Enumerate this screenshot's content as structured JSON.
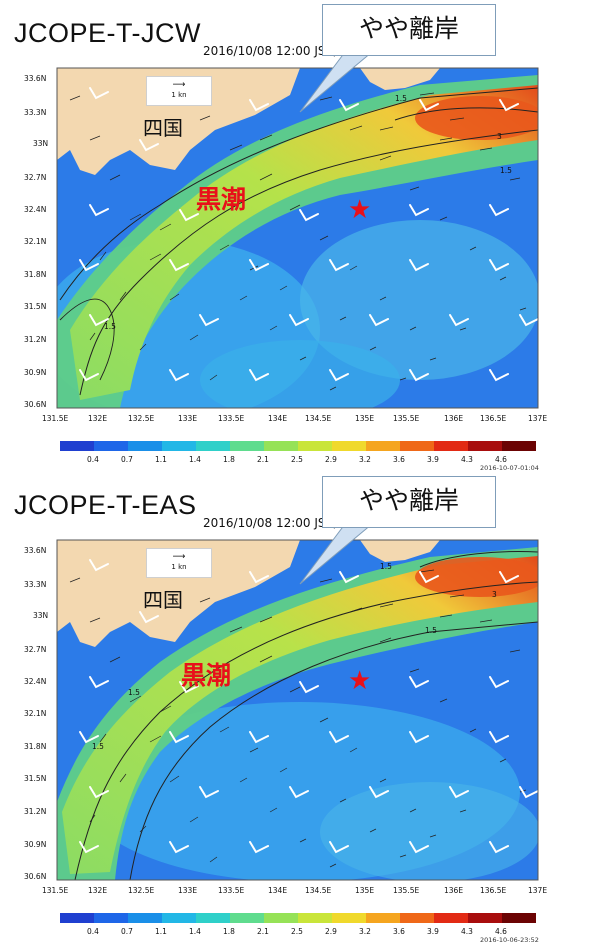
{
  "panels": [
    {
      "title": "JCOPE-T-JCW",
      "datetime": "2016/10/08 12:00 JST, z=0m",
      "callout": "やや離岸",
      "region_label": "四国",
      "current_label": "黒潮",
      "reference_arrow": "1 kn",
      "colorbar_stamp": "2016-10-07-01:04",
      "contour_label": "1.5",
      "contour_label_high": "3"
    },
    {
      "title": "JCOPE-T-EAS",
      "datetime": "2016/10/08 12:00 JST, z=0m",
      "callout": "やや離岸",
      "region_label": "四国",
      "current_label": "黒潮",
      "reference_arrow": "1 kn",
      "colorbar_stamp": "2016-10-06-23:52",
      "contour_label": "1.5",
      "contour_label_high": "3"
    }
  ],
  "lat_ticks": [
    "33.6N",
    "33.3N",
    "33N",
    "32.7N",
    "32.4N",
    "32.1N",
    "31.8N",
    "31.5N",
    "31.2N",
    "30.9N",
    "30.6N"
  ],
  "lon_ticks": [
    "131.5E",
    "132E",
    "132.5E",
    "133E",
    "133.5E",
    "134E",
    "134.5E",
    "135E",
    "135.5E",
    "136E",
    "136.5E",
    "137E"
  ],
  "colorbar_ticks": [
    "0.4",
    "0.7",
    "1.1",
    "1.4",
    "1.8",
    "2.1",
    "2.5",
    "2.9",
    "3.2",
    "3.6",
    "3.9",
    "4.3",
    "4.6"
  ],
  "colorbar_colors": [
    "#1f3fd0",
    "#1e66e8",
    "#1a8fe8",
    "#22b7e6",
    "#2fd0c9",
    "#5fdc8e",
    "#96e257",
    "#c9e53a",
    "#f0d92c",
    "#f5a51f",
    "#ef6818",
    "#e22a14",
    "#a80d0d",
    "#6b0303"
  ],
  "colors": {
    "land": "#f3d8b0",
    "sea_deep": "#2c6ee6",
    "sea_mid": "#37a2ec",
    "sea_light": "#5fcfd8",
    "current_core": "#9be05a",
    "current_edge": "#c7e53c",
    "hot": "#e44a1c",
    "accent_red": "#e8101a"
  }
}
